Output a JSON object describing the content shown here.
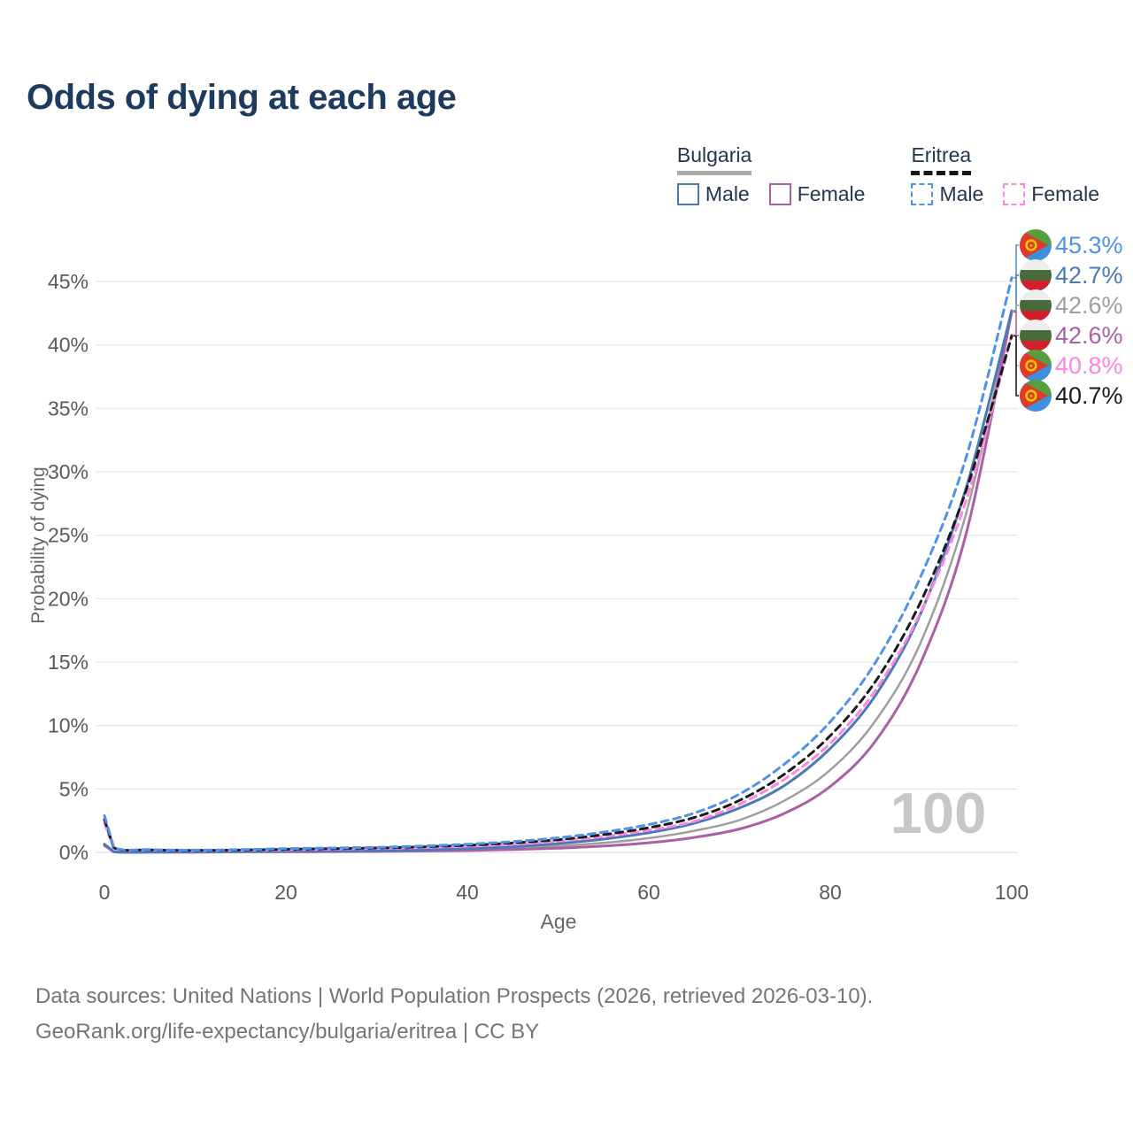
{
  "title": "Odds of dying at each age",
  "legend": {
    "groups": [
      {
        "label": "Bulgaria",
        "line_style": "solid",
        "line_color": "#a9a9a9",
        "items": [
          {
            "label": "Male",
            "color": "#4a79b8",
            "style": "solid"
          },
          {
            "label": "Female",
            "color": "#ab5fa5",
            "style": "solid"
          }
        ]
      },
      {
        "label": "Eritrea",
        "line_style": "dashed",
        "line_color": "#161616",
        "items": [
          {
            "label": "Male",
            "color": "#4e92ec",
            "style": "dashed"
          },
          {
            "label": "Female",
            "color": "#ff85e0",
            "style": "dashed"
          }
        ]
      }
    ]
  },
  "chart_data": {
    "type": "line",
    "title": "Odds of dying at each age",
    "xlabel": "Age",
    "ylabel": "Probability of dying",
    "x_ticks": [
      0,
      20,
      40,
      60,
      80,
      100
    ],
    "y_ticks_percent": [
      0,
      5,
      10,
      15,
      20,
      25,
      30,
      35,
      40,
      45
    ],
    "xlim": [
      0,
      100
    ],
    "ylim_percent": [
      0,
      46
    ],
    "grid": "horizontal",
    "watermark": "100",
    "ages": [
      0,
      1,
      5,
      10,
      15,
      20,
      25,
      30,
      35,
      40,
      45,
      50,
      55,
      60,
      65,
      70,
      75,
      80,
      85,
      90,
      95,
      100
    ],
    "series": [
      {
        "id": "bulgaria_all",
        "name": "Bulgaria",
        "country": "Bulgaria",
        "sex": "All",
        "color": "#9e9e9e",
        "dashed": false,
        "flag": "bulgaria",
        "end_label": "42.6%",
        "values_percent": [
          0.6,
          0.055,
          0.025,
          0.025,
          0.05,
          0.07,
          0.09,
          0.11,
          0.15,
          0.22,
          0.33,
          0.5,
          0.75,
          1.12,
          1.7,
          2.55,
          4.1,
          6.5,
          10.4,
          16.6,
          26.8,
          42.6
        ]
      },
      {
        "id": "bulgaria_female",
        "name": "Bulgaria Female",
        "country": "Bulgaria",
        "sex": "Female",
        "color": "#ab5fa5",
        "dashed": false,
        "flag": "bulgaria",
        "end_label": "42.6%",
        "values_percent": [
          0.55,
          0.05,
          0.02,
          0.02,
          0.04,
          0.05,
          0.06,
          0.08,
          0.11,
          0.15,
          0.22,
          0.33,
          0.5,
          0.76,
          1.18,
          1.85,
          3.1,
          5.2,
          8.8,
          15.0,
          25.2,
          42.6
        ]
      },
      {
        "id": "bulgaria_male",
        "name": "Bulgaria Male",
        "country": "Bulgaria",
        "sex": "Male",
        "color": "#4a79b8",
        "dashed": false,
        "flag": "bulgaria",
        "end_label": "42.7%",
        "values_percent": [
          0.65,
          0.06,
          0.03,
          0.03,
          0.06,
          0.09,
          0.11,
          0.14,
          0.2,
          0.3,
          0.45,
          0.7,
          1.05,
          1.55,
          2.3,
          3.5,
          5.3,
          8.2,
          12.4,
          18.9,
          28.8,
          42.7
        ]
      },
      {
        "id": "eritrea_female",
        "name": "Eritrea Female",
        "country": "Eritrea",
        "sex": "Female",
        "color": "#ff85e0",
        "dashed": true,
        "flag": "eritrea",
        "end_label": "40.8%",
        "values_percent": [
          2.3,
          0.36,
          0.18,
          0.14,
          0.16,
          0.21,
          0.26,
          0.31,
          0.38,
          0.49,
          0.64,
          0.88,
          1.25,
          1.75,
          2.45,
          3.8,
          5.8,
          8.6,
          12.8,
          19.0,
          27.8,
          40.8
        ]
      },
      {
        "id": "eritrea_all",
        "name": "Eritrea",
        "country": "Eritrea",
        "sex": "All",
        "color": "#1b1b1b",
        "dashed": true,
        "flag": "eritrea",
        "end_label": "40.7%",
        "values_percent": [
          2.6,
          0.4,
          0.2,
          0.16,
          0.19,
          0.25,
          0.3,
          0.35,
          0.44,
          0.56,
          0.74,
          1.0,
          1.4,
          1.95,
          2.75,
          4.1,
          6.2,
          9.2,
          13.5,
          19.8,
          28.6,
          40.7
        ]
      },
      {
        "id": "eritrea_male",
        "name": "Eritrea Male",
        "country": "Eritrea",
        "sex": "Male",
        "color": "#4e92ec",
        "dashed": true,
        "flag": "eritrea",
        "end_label": "45.3%",
        "values_percent": [
          2.9,
          0.45,
          0.22,
          0.18,
          0.22,
          0.3,
          0.35,
          0.4,
          0.5,
          0.65,
          0.85,
          1.15,
          1.6,
          2.2,
          3.1,
          4.6,
          7.0,
          10.3,
          15.0,
          21.8,
          31.2,
          45.3
        ]
      }
    ],
    "end_label_order": [
      "eritrea_male",
      "bulgaria_male",
      "bulgaria_all",
      "bulgaria_female",
      "eritrea_female",
      "eritrea_all"
    ],
    "flag_colors": {
      "bulgaria": {
        "white": "#eeeeee",
        "green": "#486b3b",
        "red": "#d21f2b"
      },
      "eritrea": {
        "green": "#55a03e",
        "blue": "#3e8fdd",
        "red": "#dd3a2a",
        "gold": "#f2c300"
      }
    }
  },
  "footer": {
    "line1": "Data sources: United Nations | World Population Prospects (2026, retrieved 2026-03-10).",
    "line2": "GeoRank.org/life-expectancy/bulgaria/eritrea | CC BY"
  }
}
